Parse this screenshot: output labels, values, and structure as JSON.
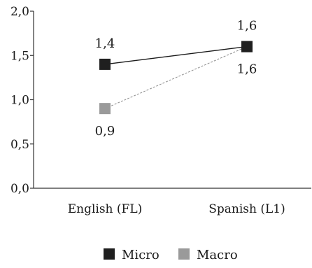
{
  "chart_data": {
    "type": "line",
    "categories": [
      "English (FL)",
      "Spanish (L1)"
    ],
    "series": [
      {
        "name": "Micro",
        "values": [
          1.4,
          1.6
        ],
        "labels": [
          "1,4",
          "1,6"
        ],
        "color": "#1f1f1f",
        "line_style": "solid"
      },
      {
        "name": "Macro",
        "values": [
          0.9,
          1.6
        ],
        "labels": [
          "0,9",
          "1,6"
        ],
        "color": "#9a9a9a",
        "line_style": "dashed"
      }
    ],
    "ylim": [
      0,
      2.0
    ],
    "yticks": [
      0,
      0.5,
      1.0,
      1.5,
      2.0
    ],
    "ytick_labels": [
      "0,0",
      "0,5",
      "1,0",
      "1,5",
      "2,0"
    ],
    "legend": "bottom",
    "grid": false
  }
}
